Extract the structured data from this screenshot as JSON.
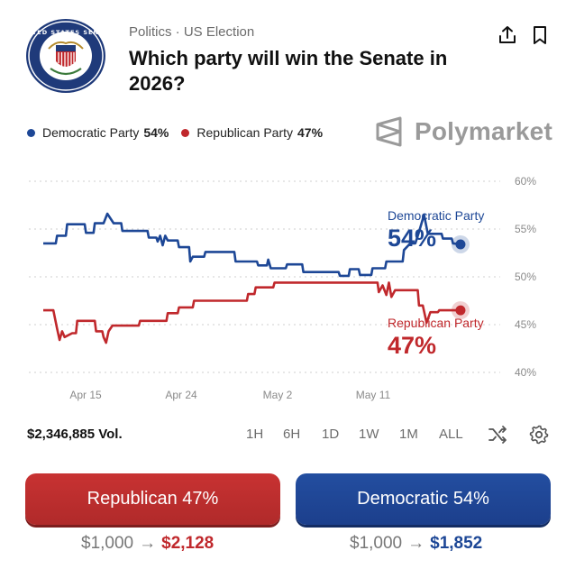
{
  "header": {
    "category": "Politics · US Election",
    "title": "Which party will win the Senate in 2026?",
    "seal_icon": "us-senate-seal",
    "seal_text": "UNITED STATES SENATE",
    "share_icon": "share-icon",
    "bookmark_icon": "bookmark-icon"
  },
  "legend": {
    "items": [
      {
        "name": "Democratic Party",
        "pct": "54%",
        "color": "#1d4796"
      },
      {
        "name": "Republican Party",
        "pct": "47%",
        "color": "#c0282c"
      }
    ]
  },
  "brand": {
    "name": "Polymarket",
    "icon": "polymarket-logo-icon"
  },
  "chart_data": {
    "type": "line",
    "ylim": [
      40,
      60
    ],
    "grid": true,
    "y_ticks": [
      "60%",
      "55%",
      "50%",
      "45%",
      "40%"
    ],
    "x_ticks": [
      "Apr 15",
      "Apr 24",
      "May 2",
      "May 11"
    ],
    "xlim": [
      0,
      36
    ],
    "series": [
      {
        "name": "Democratic Party",
        "end_label": "54%",
        "color": "#1d4796",
        "points": [
          [
            0,
            53.5
          ],
          [
            1,
            53.5
          ],
          [
            1.1,
            54.3
          ],
          [
            1.8,
            54.3
          ],
          [
            1.9,
            55.5
          ],
          [
            3.3,
            55.5
          ],
          [
            3.4,
            54.6
          ],
          [
            4,
            54.6
          ],
          [
            4.1,
            55.6
          ],
          [
            4.8,
            55.6
          ],
          [
            5.1,
            56.6
          ],
          [
            5.6,
            55.6
          ],
          [
            6.2,
            55.6
          ],
          [
            6.3,
            54.8
          ],
          [
            8.3,
            54.8
          ],
          [
            8.4,
            54.1
          ],
          [
            9,
            54.1
          ],
          [
            9.1,
            53.7
          ],
          [
            9.3,
            54.3
          ],
          [
            9.5,
            53.3
          ],
          [
            9.7,
            54.3
          ],
          [
            9.9,
            53.8
          ],
          [
            10.7,
            53.8
          ],
          [
            10.8,
            53.1
          ],
          [
            11.6,
            53.1
          ],
          [
            11.7,
            51.6
          ],
          [
            11.9,
            52.1
          ],
          [
            12.8,
            52.1
          ],
          [
            12.9,
            52.6
          ],
          [
            15.2,
            52.6
          ],
          [
            15.3,
            51.6
          ],
          [
            17,
            51.6
          ],
          [
            17.1,
            51.2
          ],
          [
            17.8,
            51.2
          ],
          [
            17.9,
            51.8
          ],
          [
            18.1,
            50.9
          ],
          [
            19.3,
            50.9
          ],
          [
            19.4,
            51.3
          ],
          [
            20.6,
            51.3
          ],
          [
            20.7,
            50.5
          ],
          [
            23.5,
            50.5
          ],
          [
            23.6,
            50.1
          ],
          [
            24.3,
            50.1
          ],
          [
            24.4,
            50.8
          ],
          [
            25.1,
            50.8
          ],
          [
            25.2,
            50.2
          ],
          [
            26.1,
            50.2
          ],
          [
            26.2,
            50.9
          ],
          [
            27.2,
            50.9
          ],
          [
            27.3,
            51.6
          ],
          [
            28.6,
            51.6
          ],
          [
            28.7,
            52.8
          ],
          [
            29.2,
            53.5
          ],
          [
            29.6,
            53.5
          ],
          [
            29.9,
            54.7
          ],
          [
            30.3,
            56.5
          ],
          [
            30.6,
            54.5
          ],
          [
            31.7,
            54.5
          ],
          [
            31.8,
            54.0
          ],
          [
            32.5,
            54.0
          ],
          [
            32.6,
            53.5
          ],
          [
            33.2,
            53.4
          ]
        ]
      },
      {
        "name": "Republican Party",
        "end_label": "47%",
        "color": "#c0282c",
        "points": [
          [
            0,
            46.5
          ],
          [
            0.8,
            46.5
          ],
          [
            1.1,
            44.6
          ],
          [
            1.3,
            43.4
          ],
          [
            1.5,
            44.3
          ],
          [
            1.7,
            43.7
          ],
          [
            2.3,
            44.1
          ],
          [
            2.6,
            44.1
          ],
          [
            2.7,
            45.4
          ],
          [
            4.1,
            45.4
          ],
          [
            4.2,
            44.3
          ],
          [
            4.7,
            44.3
          ],
          [
            4.8,
            43.7
          ],
          [
            5,
            43.1
          ],
          [
            5.2,
            44.3
          ],
          [
            5.5,
            44.9
          ],
          [
            7.6,
            44.9
          ],
          [
            7.7,
            45.4
          ],
          [
            9.8,
            45.4
          ],
          [
            9.9,
            46.2
          ],
          [
            10.7,
            46.2
          ],
          [
            10.8,
            46.8
          ],
          [
            11.9,
            46.8
          ],
          [
            12,
            47.5
          ],
          [
            16.2,
            47.5
          ],
          [
            16.3,
            48.2
          ],
          [
            16.8,
            48.2
          ],
          [
            16.9,
            48.9
          ],
          [
            18.3,
            48.9
          ],
          [
            18.4,
            49.4
          ],
          [
            26.6,
            49.4
          ],
          [
            26.7,
            48.4
          ],
          [
            27.0,
            49.1
          ],
          [
            27.3,
            48.1
          ],
          [
            27.5,
            49.4
          ],
          [
            27.7,
            47.9
          ],
          [
            28,
            48.6
          ],
          [
            29.8,
            48.6
          ],
          [
            29.9,
            47.0
          ],
          [
            30.2,
            47.0
          ],
          [
            30.5,
            45.2
          ],
          [
            30.8,
            46.3
          ],
          [
            31.4,
            46.3
          ],
          [
            31.5,
            46.5
          ],
          [
            33.2,
            46.5
          ]
        ]
      }
    ]
  },
  "toolbar": {
    "volume": "$2,346,885 Vol.",
    "ranges": [
      "1H",
      "6H",
      "1D",
      "1W",
      "1M",
      "ALL"
    ],
    "shuffle_icon": "shuffle-icon",
    "settings_icon": "gear-icon"
  },
  "bets": {
    "republican": {
      "label": "Republican 47%",
      "stake": "$1,000",
      "arrow": "→",
      "payout": "$2,128"
    },
    "democratic": {
      "label": "Democratic 54%",
      "stake": "$1,000",
      "arrow": "→",
      "payout": "$1,852"
    }
  }
}
